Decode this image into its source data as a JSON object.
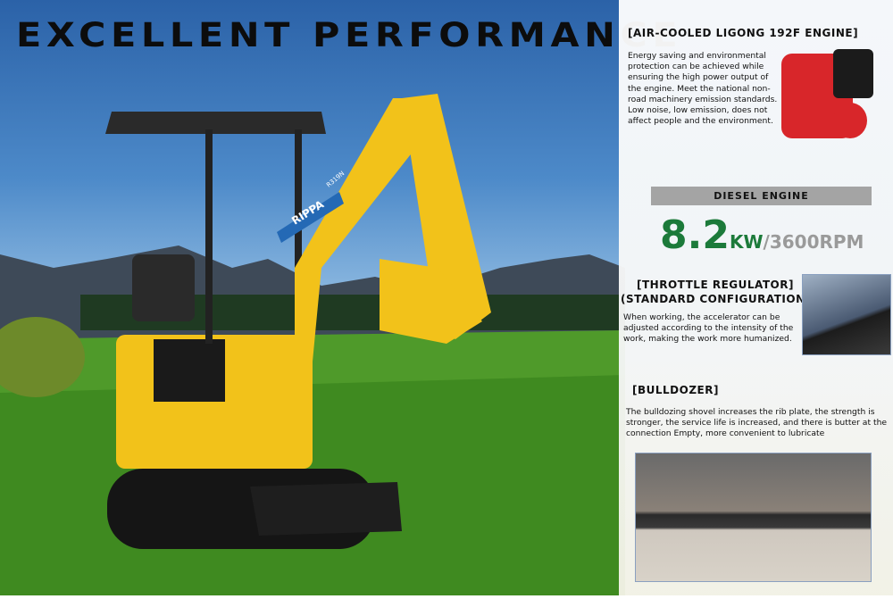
{
  "heading": "EXCELLENT PERFORMANCE",
  "machine": {
    "brand": "RIPPA",
    "model": "R319N",
    "color": "#f2c21a"
  },
  "engine": {
    "title": "[AIR-COOLED LIGONG 192F ENGINE]",
    "text": "Energy saving and environmental protection can be achieved while ensuring the high power output of the engine. Meet the national non-road machinery emission standards. Low noise, low emission, does not affect people and the environment.",
    "type_label": "DIESEL ENGINE",
    "power_value": "8.2",
    "power_unit": "KW",
    "speed": "/3600RPM"
  },
  "throttle": {
    "title_line1": "[THROTTLE REGULATOR]",
    "title_line2": "(STANDARD CONFIGURATION)",
    "text": "When working, the accelerator can be adjusted according to the intensity of the work, making the work more humanized."
  },
  "bulldozer": {
    "title": "[BULLDOZER]",
    "text": "The bulldozing shovel increases the rib plate, the strength is stronger, the service life is increased, and there is butter at the connection Empty, more convenient to lubricate"
  },
  "colors": {
    "accent_green": "#1c7a3a",
    "engine_red": "#d8262a"
  }
}
